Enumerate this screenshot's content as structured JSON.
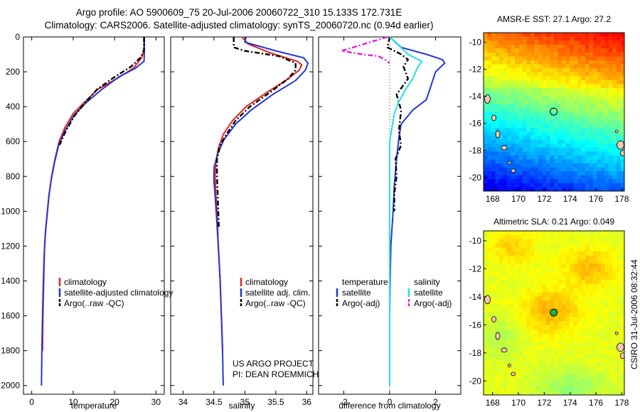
{
  "figure": {
    "title_line1": "Argo profile: AO 5900609_75 20-Jul-2006 20060722_310 15.133S 172.731E",
    "title_line2": "Climatology: CARS2006. Satellite-adjusted climatology: synTS_20060720.nc (0.94d earlier)",
    "credit": "CSIRO 31-Jul-2006 08:32:44",
    "project_line1": "US ARGO PROJECT",
    "project_line2": "PI: DEAN ROEMMICH"
  },
  "colors": {
    "climatology": "#e8221b",
    "satellite": "#2336d6",
    "argo": "#000000",
    "sat_salinity": "#22e0e8",
    "argo_salinity_adj": "#e020d8",
    "land": "#f6c6ae"
  },
  "chart_data": [
    {
      "id": "temperature",
      "type": "line",
      "xlabel": "temperature",
      "ylabel": "",
      "xlim": [
        -2,
        32
      ],
      "ylim": [
        2050,
        0
      ],
      "xticks": [
        0,
        10,
        20,
        30
      ],
      "yticks": [
        0,
        200,
        400,
        600,
        800,
        1000,
        1200,
        1400,
        1600,
        1800,
        2000
      ],
      "legend": [
        "climatology",
        "satellite-adjusted climatology",
        "Argo(..raw -QC)"
      ],
      "series": [
        {
          "name": "climatology",
          "style": "solid",
          "color_key": "climatology",
          "points": [
            [
              27.1,
              0
            ],
            [
              27.1,
              80
            ],
            [
              26.5,
              120
            ],
            [
              24.5,
              180
            ],
            [
              20.5,
              240
            ],
            [
              16,
              300
            ],
            [
              12.5,
              380
            ],
            [
              10,
              440
            ],
            [
              8,
              520
            ],
            [
              6.6,
              600
            ],
            [
              5.6,
              700
            ],
            [
              4.8,
              800
            ],
            [
              4.2,
              900
            ],
            [
              3.8,
              1000
            ],
            [
              3.4,
              1100
            ],
            [
              3.1,
              1200
            ],
            [
              2.9,
              1400
            ],
            [
              2.7,
              1600
            ],
            [
              2.6,
              1800
            ]
          ]
        },
        {
          "name": "satellite-adjusted climatology",
          "style": "solid",
          "color_key": "satellite",
          "points": [
            [
              27.2,
              0
            ],
            [
              27.2,
              90
            ],
            [
              27.1,
              140
            ],
            [
              25,
              180
            ],
            [
              21,
              230
            ],
            [
              17,
              300
            ],
            [
              13,
              380
            ],
            [
              10.2,
              450
            ],
            [
              8,
              540
            ],
            [
              6.5,
              620
            ],
            [
              5.5,
              720
            ],
            [
              4.7,
              820
            ],
            [
              4.1,
              920
            ],
            [
              3.7,
              1020
            ],
            [
              3.3,
              1120
            ],
            [
              3,
              1250
            ],
            [
              2.8,
              1400
            ],
            [
              2.6,
              1600
            ],
            [
              2.45,
              1800
            ],
            [
              2.35,
              2000
            ]
          ]
        },
        {
          "name": "Argo(..raw -QC)",
          "style": "dashed",
          "color_key": "argo",
          "points": [
            [
              27.1,
              0
            ],
            [
              27.1,
              75
            ],
            [
              26.4,
              115
            ],
            [
              24,
              170
            ],
            [
              20,
              230
            ],
            [
              15.8,
              300
            ],
            [
              12.8,
              380
            ],
            [
              10.4,
              450
            ],
            [
              8.2,
              540
            ],
            [
              6.7,
              620
            ]
          ]
        }
      ]
    },
    {
      "id": "salinity",
      "type": "line",
      "xlabel": "salinity",
      "ylabel": "",
      "xlim": [
        33.8,
        36.1
      ],
      "ylim": [
        2050,
        0
      ],
      "xticks": [
        34,
        34.5,
        35,
        35.5,
        36
      ],
      "xticklabels": [
        "34",
        "34.5",
        "35",
        "35.5",
        "36"
      ],
      "yticks": [
        0,
        200,
        400,
        600,
        800,
        1000,
        1200,
        1400,
        1600,
        1800,
        2000
      ],
      "legend": [
        "climatology",
        "satellite adj. clim.",
        "Argo(..raw -QC)"
      ],
      "series": [
        {
          "name": "climatology",
          "style": "solid",
          "color_key": "climatology",
          "points": [
            [
              34.95,
              0
            ],
            [
              35.05,
              40
            ],
            [
              35.4,
              90
            ],
            [
              35.85,
              140
            ],
            [
              35.92,
              160
            ],
            [
              35.88,
              190
            ],
            [
              35.7,
              240
            ],
            [
              35.35,
              320
            ],
            [
              35.02,
              400
            ],
            [
              34.8,
              480
            ],
            [
              34.65,
              560
            ],
            [
              34.57,
              640
            ],
            [
              34.53,
              720
            ],
            [
              34.52,
              800
            ],
            [
              34.53,
              900
            ],
            [
              34.55,
              1000
            ],
            [
              34.57,
              1200
            ],
            [
              34.6,
              1400
            ],
            [
              34.62,
              1600
            ],
            [
              34.64,
              1800
            ]
          ]
        },
        {
          "name": "satellite adj. clim.",
          "style": "solid",
          "color_key": "satellite",
          "points": [
            [
              35.02,
              0
            ],
            [
              35.0,
              30
            ],
            [
              35.5,
              80
            ],
            [
              35.95,
              120
            ],
            [
              36.02,
              150
            ],
            [
              35.98,
              190
            ],
            [
              35.82,
              250
            ],
            [
              35.45,
              330
            ],
            [
              35.1,
              420
            ],
            [
              34.85,
              500
            ],
            [
              34.66,
              590
            ],
            [
              34.56,
              670
            ],
            [
              34.5,
              750
            ],
            [
              34.5,
              830
            ],
            [
              34.52,
              920
            ],
            [
              34.54,
              1020
            ],
            [
              34.57,
              1200
            ],
            [
              34.6,
              1400
            ],
            [
              34.62,
              1600
            ],
            [
              34.64,
              1800
            ],
            [
              34.65,
              2000
            ]
          ]
        },
        {
          "name": "Argo(..raw -QC)",
          "style": "dashed",
          "color_key": "argo",
          "points": [
            [
              34.82,
              0
            ],
            [
              34.82,
              60
            ],
            [
              35.0,
              80
            ],
            [
              35.55,
              110
            ],
            [
              35.82,
              150
            ],
            [
              35.82,
              190
            ],
            [
              35.7,
              240
            ],
            [
              35.4,
              320
            ],
            [
              35.08,
              400
            ],
            [
              34.85,
              480
            ],
            [
              34.7,
              560
            ],
            [
              34.6,
              620
            ],
            [
              34.55,
              700
            ],
            [
              34.55,
              800
            ],
            [
              34.56,
              900
            ],
            [
              34.57,
              1000
            ],
            [
              34.58,
              1100
            ]
          ]
        }
      ]
    },
    {
      "id": "difference",
      "type": "line",
      "xlabel": "difference from climatology",
      "ylabel": "",
      "xlim": [
        -3.1,
        3.1
      ],
      "ylim": [
        2050,
        0
      ],
      "xticks": [
        -2,
        0,
        2
      ],
      "yticks": [
        0,
        200,
        400,
        600,
        800,
        1000,
        1200,
        1400,
        1600,
        1800,
        2000
      ],
      "legend_header_left": "temperature",
      "legend_header_right": "salinity",
      "legend": [
        "satellite",
        "Argo(-adj)",
        "satellite",
        "Argo(-adj)"
      ],
      "series": [
        {
          "name": "temperature satellite",
          "style": "solid",
          "color_key": "satellite",
          "points": [
            [
              0,
              0
            ],
            [
              0.5,
              60
            ],
            [
              1.6,
              100
            ],
            [
              2.3,
              130
            ],
            [
              2.4,
              150
            ],
            [
              2.0,
              200
            ],
            [
              1.8,
              280
            ],
            [
              1.6,
              360
            ],
            [
              1.0,
              420
            ],
            [
              0.5,
              500
            ],
            [
              0.4,
              580
            ],
            [
              0.3,
              700
            ],
            [
              0.2,
              850
            ],
            [
              0.15,
              1000
            ],
            [
              0.05,
              1200
            ],
            [
              0.02,
              1400
            ],
            [
              0,
              1600
            ],
            [
              0,
              1800
            ],
            [
              0,
              2000
            ]
          ]
        },
        {
          "name": "temperature Argo(-adj)",
          "style": "dashed",
          "color_key": "argo",
          "points": [
            [
              0,
              0
            ],
            [
              -0.05,
              30
            ],
            [
              -0.1,
              60
            ],
            [
              0.5,
              100
            ],
            [
              0.8,
              130
            ],
            [
              0.6,
              170
            ],
            [
              0.8,
              240
            ],
            [
              0.3,
              330
            ],
            [
              0.5,
              420
            ],
            [
              0.4,
              540
            ],
            [
              0.5,
              620
            ],
            [
              0.25,
              700
            ],
            [
              0.3,
              800
            ],
            [
              0.2,
              900
            ],
            [
              0.2,
              1000
            ]
          ]
        },
        {
          "name": "salinity satellite",
          "style": "solid",
          "color_key": "sat_salinity",
          "points": [
            [
              0,
              0
            ],
            [
              0.8,
              100
            ],
            [
              1.4,
              140
            ],
            [
              1.2,
              180
            ],
            [
              1.0,
              240
            ],
            [
              0.7,
              300
            ],
            [
              0.4,
              370
            ],
            [
              0.2,
              440
            ],
            [
              0.1,
              520
            ],
            [
              0.0,
              600
            ],
            [
              0.0,
              700
            ],
            [
              0.0,
              800
            ],
            [
              0.0,
              900
            ],
            [
              0.0,
              1000
            ],
            [
              0.0,
              1100
            ],
            [
              0.0,
              1200
            ],
            [
              0.0,
              1400
            ],
            [
              0.0,
              1600
            ],
            [
              0.0,
              1800
            ],
            [
              0.0,
              2000
            ]
          ]
        },
        {
          "name": "salinity Argo(-adj)",
          "style": "dashed",
          "color_key": "argo_salinity_adj",
          "points": [
            [
              -0.1,
              0
            ],
            [
              -0.6,
              20
            ],
            [
              -1.6,
              60
            ],
            [
              -2.1,
              80
            ],
            [
              -1.2,
              100
            ],
            [
              -0.5,
              110
            ],
            [
              -0.2,
              130
            ],
            [
              0,
              150
            ]
          ]
        }
      ]
    },
    {
      "id": "sst_map",
      "type": "heatmap",
      "title_prefix": "AMSR-E SST:",
      "sst_value": 27.1,
      "argo_prefix": "Argo:",
      "argo_value": 27.2,
      "xlim": [
        167.3,
        178.2
      ],
      "ylim": [
        -21,
        -9.3
      ],
      "xticks": [
        168,
        170,
        172,
        174,
        176,
        178
      ],
      "yticks": [
        -10,
        -12,
        -14,
        -16,
        -18,
        -20
      ],
      "marker": {
        "lon": 172.73,
        "lat": -15.13
      },
      "colormap": "jet",
      "value_note": "warm north (orange), green mid, blue/dark-blue south"
    },
    {
      "id": "sla_map",
      "type": "heatmap",
      "title_prefix": "Altimetric SLA:",
      "sla_value": 0.21,
      "argo_prefix": "Argo:",
      "argo_value": 0.049,
      "xlim": [
        167.3,
        178.2
      ],
      "ylim": [
        -21,
        -9.3
      ],
      "xticks": [
        168,
        170,
        172,
        174,
        176,
        178
      ],
      "yticks": [
        -10,
        -12,
        -14,
        -16,
        -18,
        -20
      ],
      "marker": {
        "lon": 172.73,
        "lat": -15.13
      },
      "colormap": "jet",
      "value_note": "yellow-green field, orange patches centre and north-east"
    }
  ]
}
